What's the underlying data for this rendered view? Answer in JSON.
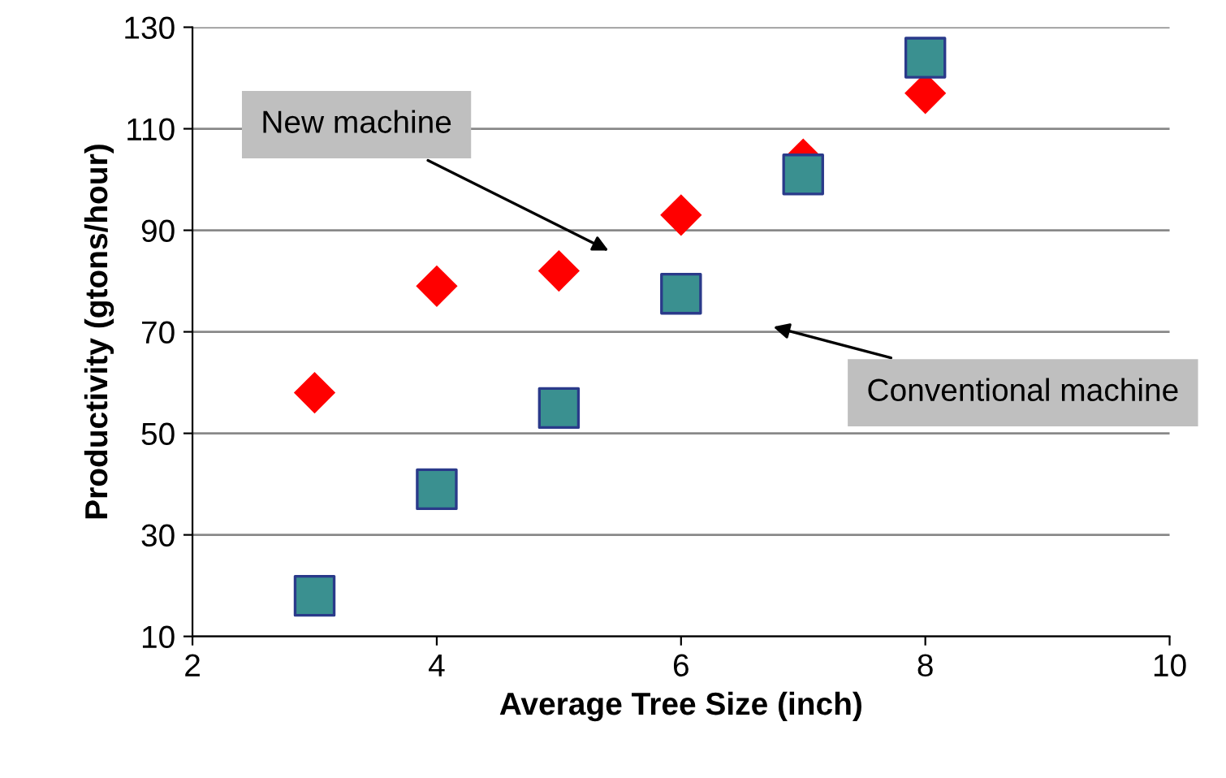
{
  "chart_data": {
    "type": "scatter",
    "xlabel": "Average Tree Size (inch)",
    "ylabel": "Productivity (gtons/hour)",
    "xlim": [
      2,
      10
    ],
    "xticks": [
      2,
      4,
      6,
      8,
      10
    ],
    "ylim": [
      10,
      130
    ],
    "yticks": [
      10,
      30,
      50,
      70,
      90,
      110,
      130
    ],
    "grid": "y",
    "series": [
      {
        "color": "#ff0000",
        "marker": "diamond",
        "x": [
          3,
          4,
          5,
          6,
          7,
          8
        ],
        "values": [
          58,
          79,
          82,
          93,
          104,
          117
        ]
      },
      {
        "color": "#3a9090",
        "marker": "square",
        "x": [
          3,
          4,
          5,
          6,
          7,
          8
        ],
        "values": [
          18,
          39,
          55,
          77.5,
          101,
          124
        ]
      }
    ],
    "annotations": [
      "New machine",
      "Conventional machine"
    ]
  }
}
